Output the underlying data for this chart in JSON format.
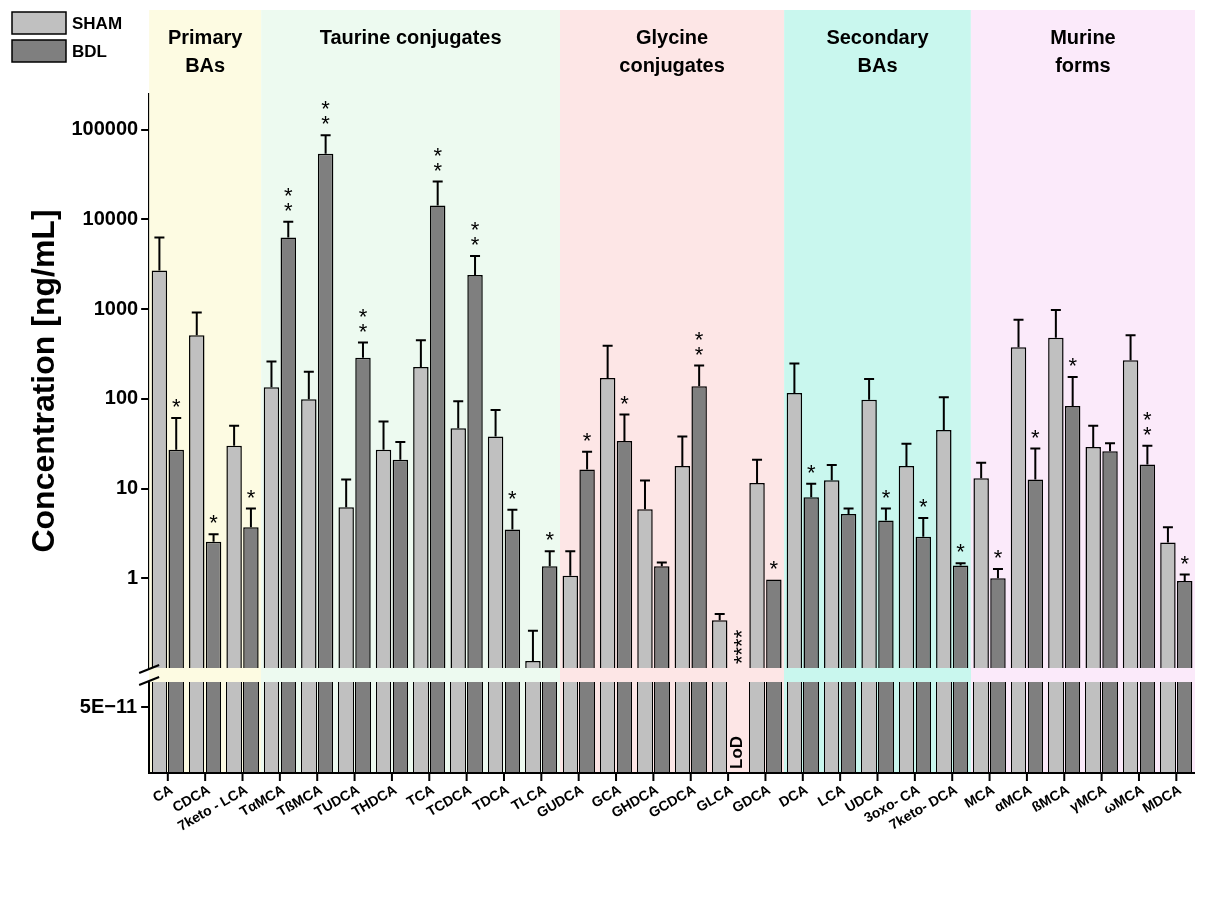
{
  "chart_data": {
    "type": "bar",
    "ylabel": "Concentration [ng/mL]",
    "categories": [
      "CA",
      "CDCA",
      "7keto - LCA",
      "TαMCA",
      "TßMCA",
      "TUDCA",
      "THDCA",
      "TCA",
      "TCDCA",
      "TDCA",
      "TLCA",
      "GUDCA",
      "GCA",
      "GHDCA",
      "GCDCA",
      "GLCA",
      "GDCA",
      "DCA",
      "LCA",
      "UDCA",
      "3oxo- CA",
      "7keto- DCA",
      "MCA",
      "αMCA",
      "ßMCA",
      "γMCA",
      "ωMCA",
      "MDCA"
    ],
    "series": [
      {
        "name": "SHAM",
        "color": "#c0c0c0",
        "values": [
          2700,
          510,
          30,
          135,
          99,
          6.2,
          27,
          226,
          47,
          38,
          0.12,
          1.07,
          171,
          5.9,
          17.8,
          0.34,
          11.5,
          116,
          12.4,
          98,
          17.8,
          45,
          13,
          377,
          480,
          29,
          270,
          2.5
        ],
        "errors": [
          [
            2700,
            6300
          ],
          [
            510,
            920
          ],
          [
            30,
            50
          ],
          [
            135,
            260
          ],
          [
            99,
            200
          ],
          [
            6.2,
            12.6
          ],
          [
            27,
            56
          ],
          [
            226,
            450
          ],
          [
            47,
            94
          ],
          [
            38,
            75
          ],
          [
            0.12,
            0.26
          ],
          [
            1.07,
            2.0
          ],
          [
            171,
            390
          ],
          [
            5.9,
            12.3
          ],
          [
            17.8,
            38
          ],
          [
            0.34,
            0.4
          ],
          [
            11.5,
            21
          ],
          [
            116,
            247
          ],
          [
            12.4,
            18.3
          ],
          [
            98,
            166
          ],
          [
            17.8,
            31.6
          ],
          [
            45,
            104
          ],
          [
            13,
            19.4
          ],
          [
            377,
            760
          ],
          [
            480,
            980
          ],
          [
            29,
            50
          ],
          [
            270,
            510
          ],
          [
            2.5,
            3.7
          ]
        ]
      },
      {
        "name": "BDL",
        "color": "#7f7f7f",
        "values": [
          27,
          2.55,
          3.7,
          6300,
          54000,
          287,
          21,
          14300,
          2400,
          3.5,
          1.36,
          16.3,
          34,
          1.36,
          138,
          null,
          0.97,
          8.0,
          5.2,
          4.4,
          2.9,
          1.39,
          1.0,
          12.6,
          83,
          26,
          18.5,
          0.93
        ],
        "errors": [
          [
            27,
            61
          ],
          [
            2.55,
            3.1
          ],
          [
            3.7,
            6.0
          ],
          [
            6300,
            9400
          ],
          [
            54000,
            87000
          ],
          [
            287,
            424
          ],
          [
            21,
            33
          ],
          [
            14300,
            26500
          ],
          [
            2400,
            3900
          ],
          [
            3.5,
            5.8
          ],
          [
            1.36,
            2.0
          ],
          [
            16.3,
            25.7
          ],
          [
            34,
            67
          ],
          [
            1.36,
            1.5
          ],
          [
            138,
            235
          ],
          null,
          null,
          [
            8.0,
            11.3
          ],
          [
            5.2,
            6.0
          ],
          [
            4.4,
            6.0
          ],
          [
            2.9,
            4.7
          ],
          [
            1.39,
            1.47
          ],
          [
            1.0,
            1.27
          ],
          [
            12.6,
            28
          ],
          [
            83,
            175
          ],
          [
            26,
            32
          ],
          [
            18.5,
            30
          ],
          [
            0.93,
            1.1
          ]
        ]
      }
    ],
    "log": true,
    "ylim": [
      0.1,
      250000
    ],
    "yticks": [
      1,
      10,
      100,
      1000,
      10000,
      100000
    ],
    "legend": "top left",
    "bands": [
      {
        "axis": "x",
        "from": "CA",
        "to": "7keto - LCA",
        "label": "Primary\nBAs",
        "color": "#fdfbe2"
      },
      {
        "axis": "x",
        "from": "TαMCA",
        "to": "TLCA",
        "label": "Taurine conjugates",
        "color": "#edfaf0"
      },
      {
        "axis": "x",
        "from": "GUDCA",
        "to": "GDCA",
        "label": "Glycine\nconjugates",
        "color": "#fde6e6"
      },
      {
        "axis": "x",
        "from": "DCA",
        "to": "7keto- DCA",
        "label": "Secondary\nBAs",
        "color": "#c9f7ee"
      },
      {
        "axis": "x",
        "from": "MCA",
        "to": "MDCA",
        "label": "Murine\nforms",
        "color": "#fbeafa"
      }
    ],
    "annotations": [
      "5E−11",
      {
        "text": "*",
        "x": "CA",
        "y": 61
      },
      {
        "text": "*",
        "x": "CDCA",
        "y": 3.1
      },
      {
        "text": "*",
        "x": "7keto - LCA",
        "y": 6.0
      },
      {
        "text": "**",
        "x": "TαMCA",
        "y": 9400
      },
      {
        "text": "**",
        "x": "TßMCA",
        "y": 87000
      },
      {
        "text": "**",
        "x": "TUDCA",
        "y": 424
      },
      {
        "text": "**",
        "x": "TCA",
        "y": 26500
      },
      {
        "text": "**",
        "x": "TCDCA",
        "y": 3900
      },
      {
        "text": "*",
        "x": "TDCA",
        "y": 5.8
      },
      {
        "text": "*",
        "x": "TLCA",
        "y": 2.0
      },
      {
        "text": "*",
        "x": "GUDCA",
        "y": 25.7
      },
      {
        "text": "*",
        "x": "GCA",
        "y": 67
      },
      {
        "text": "**",
        "x": "GCDCA",
        "y": 235
      },
      "LoD",
      {
        "text": "****",
        "x": "GLCA"
      },
      {
        "text": "*",
        "x": "GDCA",
        "y": 0.97
      },
      {
        "text": "*",
        "x": "DCA",
        "y": 11.3
      },
      {
        "text": "*",
        "x": "UDCA",
        "y": 6.0
      },
      {
        "text": "*",
        "x": "3oxo- CA",
        "y": 4.7
      },
      {
        "text": "*",
        "x": "7keto- DCA",
        "y": 1.47
      },
      {
        "text": "*",
        "x": "MCA",
        "y": 1.27
      },
      {
        "text": "*",
        "x": "αMCA",
        "y": 28
      },
      {
        "text": "*",
        "x": "ßMCA",
        "y": 175
      },
      {
        "text": "**",
        "x": "ωMCA",
        "y": 30
      },
      {
        "text": "*",
        "x": "MDCA",
        "y": 1.1
      }
    ]
  }
}
